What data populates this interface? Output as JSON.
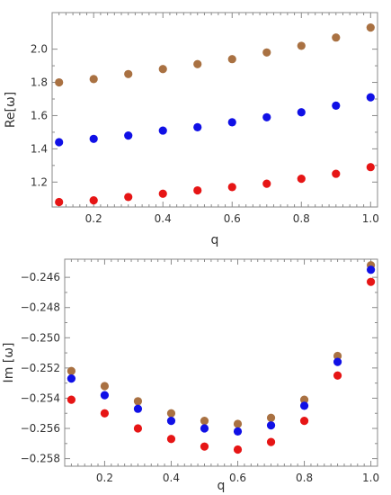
{
  "chart_data": [
    {
      "type": "scatter",
      "xlabel": "q",
      "ylabel": "Re[ω]",
      "xlim": [
        0.08,
        1.02
      ],
      "ylim": [
        1.05,
        2.22
      ],
      "xticks": [
        0.2,
        0.4,
        0.6,
        0.8,
        1.0
      ],
      "xtick_labels": [
        "0.2",
        "0.4",
        "0.6",
        "0.8",
        "1.0"
      ],
      "yticks": [
        1.2,
        1.4,
        1.6,
        1.8,
        2.0
      ],
      "ytick_labels": [
        "1.2",
        "1.4",
        "1.6",
        "1.8",
        "2.0"
      ],
      "grid": false,
      "x": [
        0.1,
        0.2,
        0.3,
        0.4,
        0.5,
        0.6,
        0.7,
        0.8,
        0.9,
        1.0
      ],
      "series": [
        {
          "color": "#a97142",
          "values": [
            1.8,
            1.82,
            1.85,
            1.88,
            1.91,
            1.94,
            1.98,
            2.02,
            2.07,
            2.13
          ]
        },
        {
          "color": "#1010e6",
          "values": [
            1.44,
            1.46,
            1.48,
            1.51,
            1.53,
            1.56,
            1.59,
            1.62,
            1.66,
            1.71
          ]
        },
        {
          "color": "#e61515",
          "values": [
            1.08,
            1.09,
            1.11,
            1.13,
            1.15,
            1.17,
            1.19,
            1.22,
            1.25,
            1.29
          ]
        }
      ]
    },
    {
      "type": "scatter",
      "xlabel": "q",
      "ylabel": "Im [ω]",
      "xlim": [
        0.08,
        1.02
      ],
      "ylim": [
        -0.2585,
        -0.2448
      ],
      "xticks": [
        0.2,
        0.4,
        0.6,
        0.8,
        1.0
      ],
      "xtick_labels": [
        "0.2",
        "0.4",
        "0.6",
        "0.8",
        "1.0"
      ],
      "yticks": [
        -0.258,
        -0.256,
        -0.254,
        -0.252,
        -0.25,
        -0.248,
        -0.246
      ],
      "ytick_labels": [
        "−0.258",
        "−0.256",
        "−0.254",
        "−0.252",
        "−0.250",
        "−0.248",
        "−0.246"
      ],
      "grid": false,
      "x": [
        0.1,
        0.2,
        0.3,
        0.4,
        0.5,
        0.6,
        0.7,
        0.8,
        0.9,
        1.0
      ],
      "series": [
        {
          "color": "#a97142",
          "values": [
            -0.2522,
            -0.2532,
            -0.2542,
            -0.255,
            -0.2555,
            -0.2557,
            -0.2553,
            -0.2541,
            -0.2512,
            -0.2452
          ]
        },
        {
          "color": "#1010e6",
          "values": [
            -0.2527,
            -0.2538,
            -0.2547,
            -0.2555,
            -0.256,
            -0.2562,
            -0.2558,
            -0.2545,
            -0.2516,
            -0.2455
          ]
        },
        {
          "color": "#e61515",
          "values": [
            -0.2541,
            -0.255,
            -0.256,
            -0.2567,
            -0.2572,
            -0.2574,
            -0.2569,
            -0.2555,
            -0.2525,
            -0.2463
          ]
        }
      ]
    }
  ]
}
